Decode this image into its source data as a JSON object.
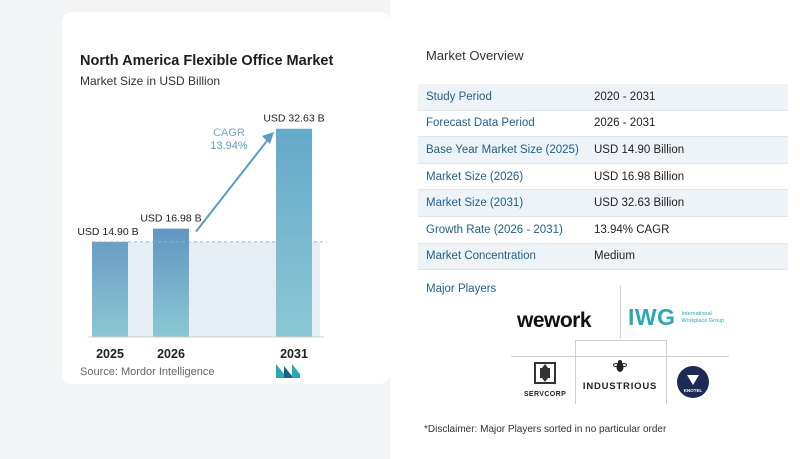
{
  "chart_data": {
    "type": "bar",
    "title": "North America Flexible Office Market",
    "subtitle": "Market Size in USD Billion",
    "categories": [
      "2025",
      "2026",
      "2031"
    ],
    "values": [
      14.9,
      16.98,
      32.63
    ],
    "data_labels": [
      "USD 14.90 B",
      "USD 16.98 B",
      "USD 32.63 B"
    ],
    "ylim": [
      0,
      34
    ],
    "annotation": {
      "label": "CAGR",
      "value": "13.94%"
    },
    "bar_colors": [
      "#6a9dc4",
      "#6196c1",
      "#65a9c9"
    ],
    "grid": false,
    "legend": "none"
  },
  "source": "Source:  Mordor Intelligence",
  "overview": {
    "title": "Market Overview",
    "rows": [
      {
        "label": "Study Period",
        "value": "2020 - 2031"
      },
      {
        "label": "Forecast Data Period",
        "value": "2026 - 2031"
      },
      {
        "label": "Base Year Market Size (2025)",
        "value": "USD 14.90 Billion"
      },
      {
        "label": "Market Size (2026)",
        "value": "USD 16.98 Billion"
      },
      {
        "label": "Market Size (2031)",
        "value": "USD 32.63 Billion"
      },
      {
        "label": "Growth Rate (2026 - 2031)",
        "value": "13.94% CAGR"
      },
      {
        "label": "Market Concentration",
        "value": "Medium"
      }
    ]
  },
  "players": {
    "label": "Major Players",
    "wework": "wework",
    "iwg": "IWG",
    "iwg_sub": "International Workplace Group",
    "servcorp": "SERVCORP",
    "industrious": "INDUSTRIOUS",
    "knotel": "KNOTEL"
  },
  "disclaimer": "*Disclaimer: Major Players sorted in no particular order",
  "colors": {
    "accent": "#1f5f8b",
    "teal": "#2aa9b5"
  }
}
